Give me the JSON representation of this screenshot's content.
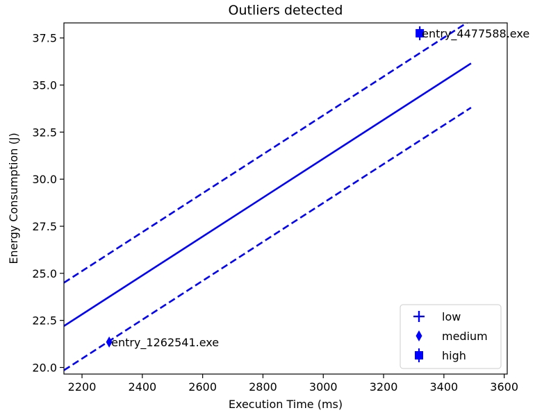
{
  "chart_data": {
    "type": "scatter",
    "title": "Outliers detected",
    "xlabel": "Execution Time (ms)",
    "ylabel": "Energy  Consumption (J)",
    "xlim": [
      2140,
      3610
    ],
    "ylim": [
      19.65,
      38.3
    ],
    "x_ticks": [
      2200,
      2400,
      2600,
      2800,
      3000,
      3200,
      3400,
      3600
    ],
    "y_ticks": [
      20.0,
      22.5,
      25.0,
      27.5,
      30.0,
      32.5,
      35.0,
      37.5
    ],
    "y_tick_labels": [
      "20.0",
      "22.5",
      "25.0",
      "27.5",
      "30.0",
      "32.5",
      "35.0",
      "37.5"
    ],
    "grid": false,
    "color": "#0000ff",
    "lines": [
      {
        "style": "solid",
        "x": [
          2140,
          3490
        ],
        "y": [
          22.2,
          36.15
        ]
      },
      {
        "style": "dashed",
        "x": [
          2140,
          3490
        ],
        "y": [
          24.5,
          38.45
        ]
      },
      {
        "style": "dashed",
        "x": [
          2140,
          3490
        ],
        "y": [
          19.85,
          33.8
        ]
      }
    ],
    "series": [
      {
        "name": "low",
        "marker": "plus",
        "x": [],
        "y": []
      },
      {
        "name": "medium",
        "marker": "thin_diamond",
        "x": [
          2290
        ],
        "y": [
          21.35
        ]
      },
      {
        "name": "high",
        "marker": "square",
        "x": [
          3320
        ],
        "y": [
          37.75
        ]
      }
    ],
    "annotations": [
      {
        "text": "entry_1262541.exe",
        "x": 2290,
        "y": 21.35
      },
      {
        "text": "entry_4477588.exe",
        "x": 3320,
        "y": 37.75
      }
    ],
    "legend_position": "lower right"
  }
}
